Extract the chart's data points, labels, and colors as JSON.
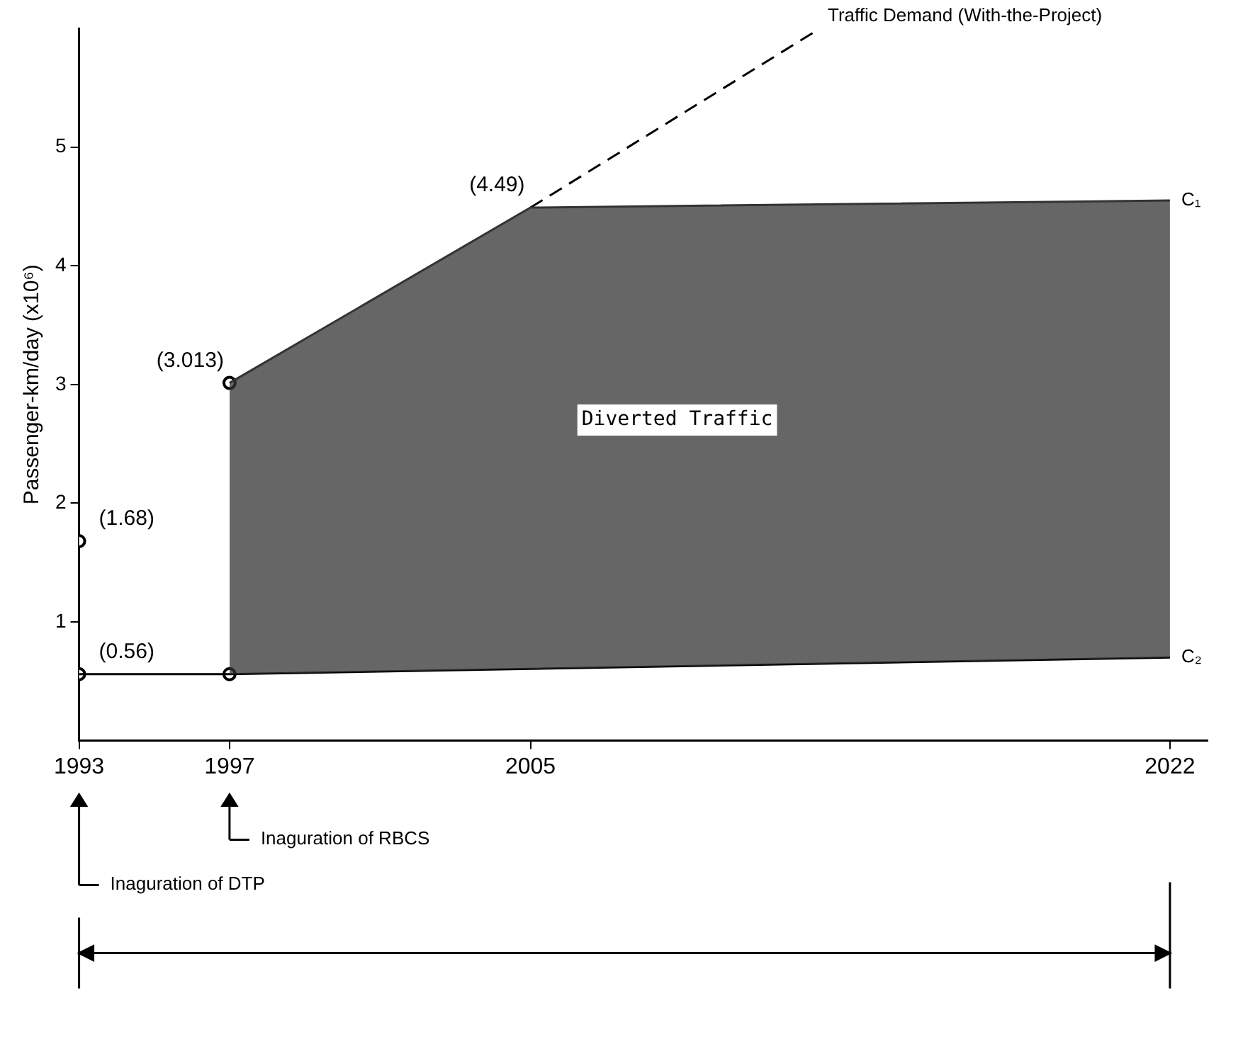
{
  "chart_data": {
    "type": "line",
    "ylabel": "Passenger-km/day (x10⁶)",
    "xlim": [
      1993,
      2023
    ],
    "xticks": [
      1993,
      1997,
      2005,
      2022
    ],
    "ylim": [
      0,
      6
    ],
    "yticks": [
      1,
      2,
      3,
      4,
      5
    ],
    "grid": false,
    "legend": false,
    "series": [
      {
        "name": "C₁",
        "type": "area",
        "color": "#333333",
        "x": [
          1997,
          2005,
          2022
        ],
        "values": [
          3.013,
          4.49,
          4.55
        ],
        "value_labels": [
          null,
          "(4.49)",
          null
        ]
      },
      {
        "name": "C₂",
        "color": "#000000",
        "x": [
          1993,
          1997,
          2022
        ],
        "values": [
          0.56,
          0.56,
          0.7
        ]
      },
      {
        "name": "Traffic Demand (With-the-Project)",
        "line_style": "dashed",
        "color": "#000000",
        "x": [
          2005,
          2012.6
        ],
        "values": [
          4.49,
          5.98
        ]
      },
      {
        "type": "scatter",
        "marker": "circle",
        "color": "#000000",
        "x": [
          1993,
          1993,
          1997,
          1997
        ],
        "values": [
          0.56,
          1.68,
          0.56,
          3.013
        ],
        "value_labels": [
          "(0.56)",
          "(1.68)",
          null,
          "(3.013)"
        ]
      }
    ],
    "annotations": [
      "Diverted Traffic",
      "Inaguration of RBCS",
      "Inaguration of DTP"
    ]
  }
}
